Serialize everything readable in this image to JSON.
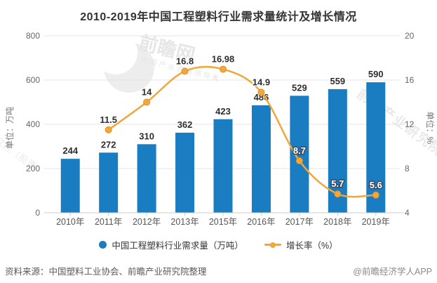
{
  "chart_data": {
    "type": "combo-bar-line",
    "title": "2010-2019年中国工程塑料行业需求量统计及增长情况",
    "categories": [
      "2010年",
      "2011年",
      "2012年",
      "2013年",
      "2015年",
      "2016年",
      "2017年",
      "2018年",
      "2019年"
    ],
    "series": [
      {
        "name": "中国工程塑料行业需求量（万吨）",
        "type": "bar",
        "axis": "left",
        "values": [
          244,
          272,
          310,
          362,
          423,
          486,
          529,
          559,
          590
        ],
        "labels": [
          "244",
          "272",
          "310",
          "362",
          "423",
          "486",
          "529",
          "559",
          "590"
        ]
      },
      {
        "name": "增长率（%）",
        "type": "line",
        "axis": "right",
        "values": [
          null,
          11.5,
          14,
          16.8,
          16.98,
          14.9,
          8.7,
          5.7,
          5.6
        ],
        "labels": [
          null,
          "11.5",
          "14",
          "16.8",
          "16.98",
          "14.9",
          "8.7",
          "5.7",
          "5.6"
        ],
        "label_styles": [
          null,
          "dark",
          "dark",
          "dark",
          "dark",
          "dark",
          "light",
          "light",
          "light"
        ]
      }
    ],
    "left_axis": {
      "name": "单位：万吨",
      "min": 0,
      "max": 800,
      "ticks": [
        "800",
        "600",
        "400",
        "200",
        "0"
      ],
      "tick_values": [
        800,
        600,
        400,
        200,
        0
      ]
    },
    "right_axis": {
      "name": "单位：%",
      "min": 4,
      "max": 20,
      "ticks": [
        "20",
        "16",
        "12",
        "8",
        "4"
      ],
      "tick_values": [
        20,
        16,
        12,
        8,
        4
      ]
    },
    "grid": true,
    "legend_position": "bottom"
  },
  "legend": {
    "items": [
      {
        "label": "中国工程塑料行业需求量（万吨）",
        "marker": "circle"
      },
      {
        "label": "增长率（%）",
        "marker": "line-dot"
      }
    ]
  },
  "footer": {
    "source": "资料来源：中国塑料工业协会、前瞻产业研究院整理",
    "credit": "@前瞻经济学人APP"
  },
  "watermark": {
    "brand": "前瞻网",
    "tagline": "中国产业咨询领导者",
    "side_text": "前瞻产业研究院",
    "left_fragment": "究院（股票"
  },
  "colors": {
    "bar": "#1a7cc1",
    "line": "#f2a63b",
    "marker_stroke": "#dd9426",
    "grid": "#e4e4e4",
    "axis": "#cccccc",
    "tick_label": "#666666",
    "category_label": "#555555",
    "value_label": "#2e2e2e",
    "light_label_fill": "#ffffff",
    "light_label_halo": "#3a4a63",
    "axis_name": "#777777",
    "background": "#ffffff"
  }
}
